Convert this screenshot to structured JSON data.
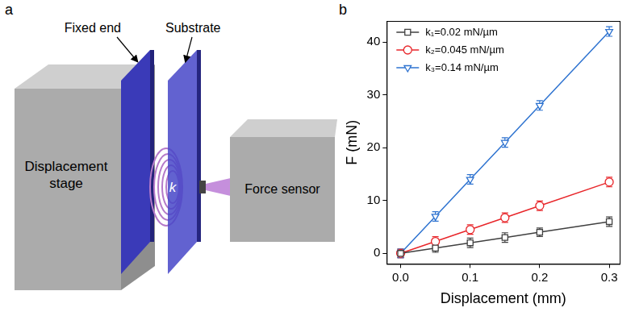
{
  "panel_letters": [
    "a",
    "b"
  ],
  "diagram": {
    "fixed_end": "Fixed end",
    "substrate": "Substrate",
    "displacement_stage": "Displacement stage",
    "spring": "k",
    "force_sensor": "Force sensor"
  },
  "chart_data": {
    "type": "line",
    "x_label": "Displacement (mm)",
    "y_label": "F (mN)",
    "x": [
      0,
      0.05,
      0.1,
      0.15,
      0.2,
      0.3
    ],
    "series": [
      {
        "name": "k₁=0.02 mN/µm",
        "color": "#404040",
        "marker": "square",
        "values": [
          0,
          1,
          2,
          3,
          4,
          6
        ],
        "errors": [
          0.8,
          0.8,
          0.9,
          0.9,
          0.8,
          0.9
        ]
      },
      {
        "name": "k₂=0.045 mN/µm",
        "color": "#e8262a",
        "marker": "circle",
        "values": [
          0,
          2.25,
          4.5,
          6.75,
          9,
          13.5
        ],
        "errors": [
          0.8,
          0.9,
          0.9,
          0.9,
          0.9,
          0.9
        ]
      },
      {
        "name": "k₃=0.14 mN/µm",
        "color": "#2e73d0",
        "marker": "triangle_down",
        "values": [
          0,
          7,
          14,
          21,
          28,
          42
        ],
        "errors": [
          0.8,
          0.9,
          0.9,
          0.9,
          0.9,
          0.9
        ]
      }
    ],
    "xlim": [
      -0.02,
      0.315
    ],
    "xticks": [
      {
        "value": 0,
        "label": "0.0"
      },
      0.1,
      0.2,
      0.3
    ],
    "ylim": [
      -2,
      44
    ],
    "yticks": [
      0,
      10,
      20,
      30,
      40
    ],
    "grid": false,
    "legend": "upper left"
  }
}
